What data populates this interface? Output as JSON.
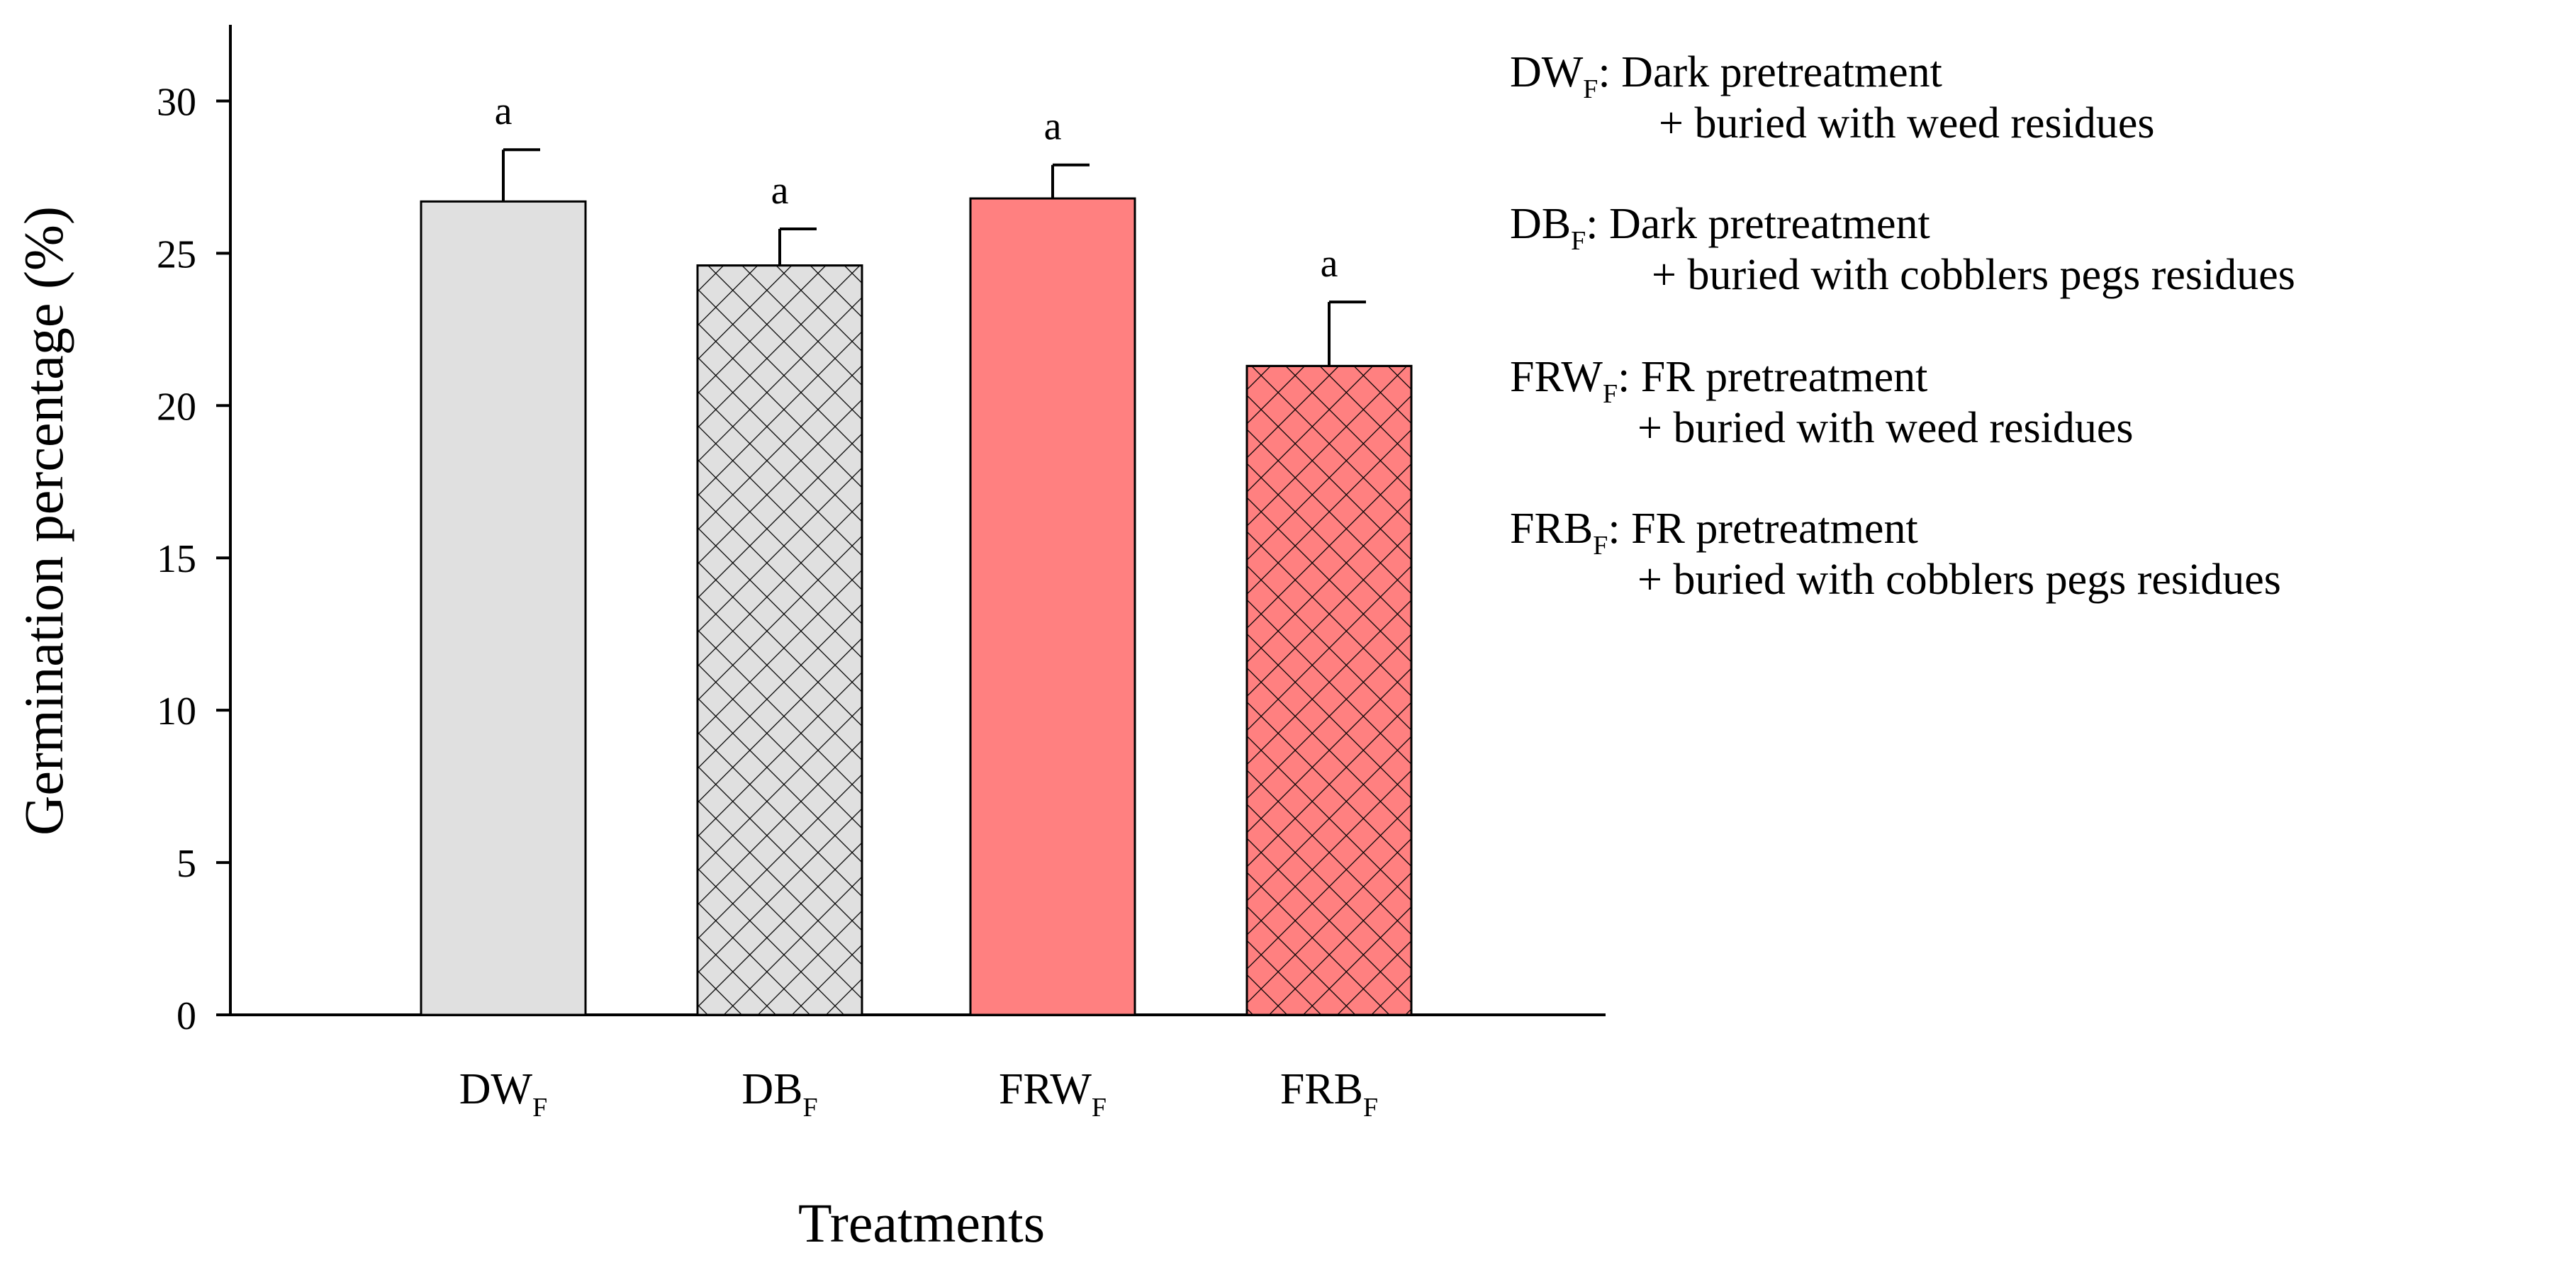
{
  "chart_data": {
    "type": "bar",
    "xlabel": "Treatments",
    "ylabel": "Germination percentage (%)",
    "ylim": [
      0,
      32.5
    ],
    "yticks": [
      0,
      5,
      10,
      15,
      20,
      25,
      30
    ],
    "grid": false,
    "categories": [
      {
        "name": "DW",
        "sub": "F"
      },
      {
        "name": "DB",
        "sub": "F"
      },
      {
        "name": "FRW",
        "sub": "F"
      },
      {
        "name": "FRB",
        "sub": "F"
      }
    ],
    "values": [
      26.7,
      24.6,
      26.8,
      21.3
    ],
    "errors": [
      1.7,
      1.2,
      1.1,
      2.1
    ],
    "significance": [
      "a",
      "a",
      "a",
      "a"
    ],
    "colors": [
      "#e0e0e0",
      "#e0e0e0",
      "#ff8080",
      "#ff8080"
    ],
    "hatched": [
      false,
      true,
      false,
      true
    ],
    "legend_placement": "right",
    "legend": [
      {
        "key": "DW",
        "sub": "F",
        "line1": ": Dark pretreatment",
        "line2": "+ buried with weed residues"
      },
      {
        "key": "DB",
        "sub": "F",
        "line1": ":  Dark pretreatment",
        "line2": "+ buried with cobblers pegs residues"
      },
      {
        "key": "FRW",
        "sub": "F",
        "line1": ": FR pretreatment",
        "line2": "+ buried with weed residues"
      },
      {
        "key": "FRB",
        "sub": "F",
        "line1": ":  FR pretreatment",
        "line2": "+ buried with cobblers pegs residues"
      }
    ]
  }
}
